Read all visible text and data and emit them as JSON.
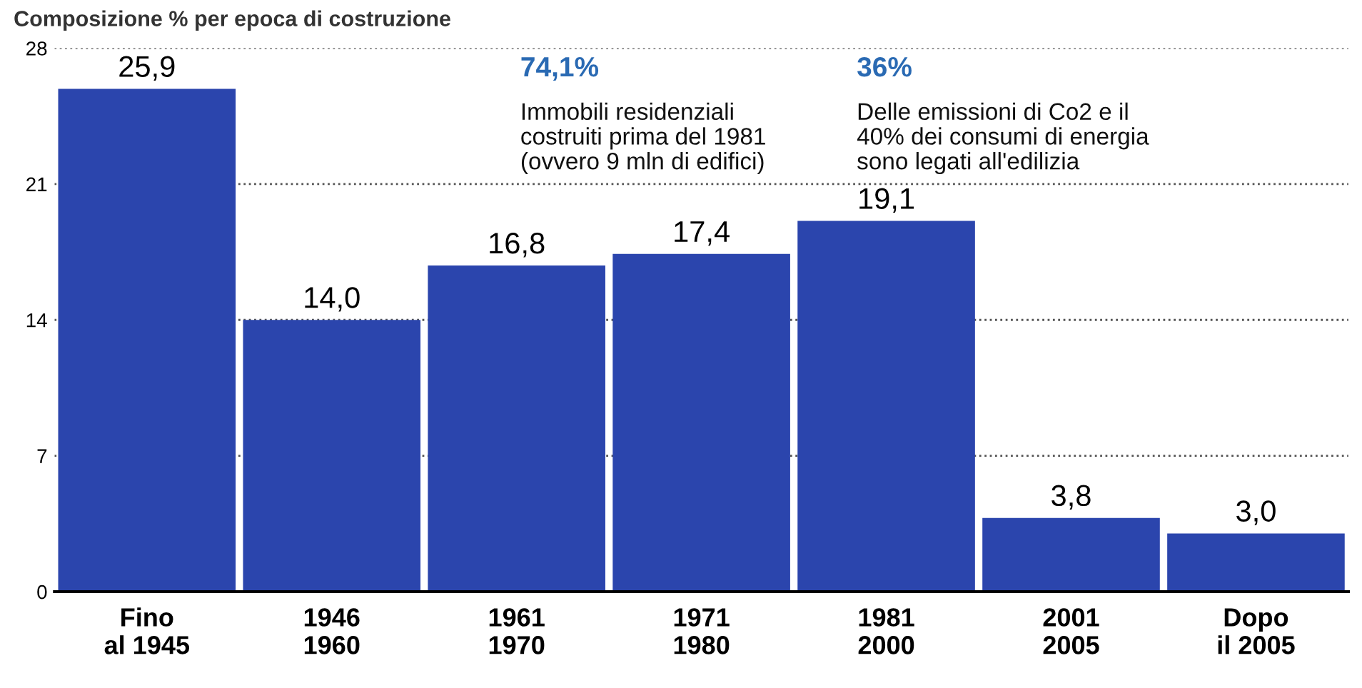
{
  "chart_data": {
    "type": "bar",
    "title": "Composizione % per epoca di costruzione",
    "categories": [
      "Fino\nal 1945",
      "1946\n1960",
      "1961\n1970",
      "1971\n1980",
      "1981\n2000",
      "2001\n2005",
      "Dopo\nil 2005"
    ],
    "values": [
      25.9,
      14.0,
      16.8,
      17.4,
      19.1,
      3.8,
      3.0
    ],
    "value_labels": [
      "25,9",
      "14,0",
      "16,8",
      "17,4",
      "19,1",
      "3,8",
      "3,0"
    ],
    "color": "#2b45ad",
    "ylim": [
      0,
      28
    ],
    "yticks": [
      0,
      7,
      14,
      21,
      28
    ],
    "grid": "y",
    "annotations": [
      "74,1%",
      "Immobili residenziali\ncostruiti prima del 1981\n(ovvero 9 mln di edifici)",
      "36%",
      "Delle emissioni di Co2 e il\n40% dei consumi di energia\nsono legati all'edilizia"
    ]
  }
}
